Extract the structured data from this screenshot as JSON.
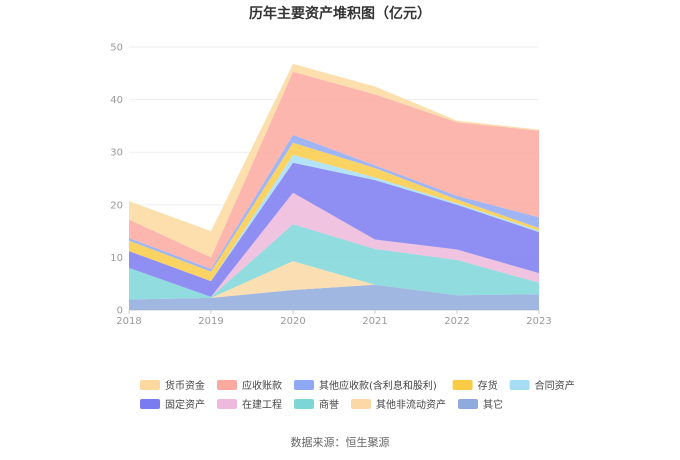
{
  "chart_data": {
    "type": "area",
    "stacked": true,
    "title": "历年主要资产堆积图（亿元）",
    "x": [
      "2018",
      "2019",
      "2020",
      "2021",
      "2022",
      "2023"
    ],
    "yticks": [
      "0",
      "10",
      "20",
      "30",
      "40",
      "50"
    ],
    "ylim": [
      0,
      50
    ],
    "grid": true,
    "legend_position": "bottom",
    "series": [
      {
        "name": "其它",
        "color": "#8FAADC",
        "values": [
          2.0,
          2.3,
          3.8,
          4.8,
          2.8,
          3.0
        ]
      },
      {
        "name": "其他非流动资产",
        "color": "#FBD8A6",
        "values": [
          0.0,
          0.0,
          5.5,
          0.0,
          0.0,
          0.0
        ]
      },
      {
        "name": "商誉",
        "color": "#7CD6D8",
        "values": [
          6.0,
          0.2,
          7.0,
          6.8,
          6.7,
          2.2
        ]
      },
      {
        "name": "在建工程",
        "color": "#EDB9DC",
        "values": [
          0.0,
          0.0,
          6.0,
          1.8,
          2.0,
          1.8
        ]
      },
      {
        "name": "固定资产",
        "color": "#7B7BF1",
        "values": [
          3.2,
          3.0,
          5.7,
          11.3,
          8.5,
          7.8
        ]
      },
      {
        "name": "合同资产",
        "color": "#A7DDF4",
        "values": [
          0.0,
          0.0,
          1.5,
          0.5,
          0.3,
          0.3
        ]
      },
      {
        "name": "存货",
        "color": "#FACB47",
        "values": [
          2.0,
          1.8,
          2.3,
          1.8,
          0.7,
          0.5
        ]
      },
      {
        "name": "其他应收款(含利息和股利)",
        "color": "#8EA8F5",
        "values": [
          0.5,
          0.5,
          1.5,
          0.5,
          0.7,
          2.0
        ]
      },
      {
        "name": "应收账款",
        "color": "#FCA9A0",
        "values": [
          3.5,
          2.2,
          12.0,
          13.5,
          14.0,
          16.5
        ]
      },
      {
        "name": "货币资金",
        "color": "#FDD9A0",
        "values": [
          3.5,
          5.0,
          1.5,
          1.5,
          0.3,
          0.2
        ]
      }
    ],
    "legend_order": [
      "货币资金",
      "应收账款",
      "其他应收款(含利息和股利)",
      "存货",
      "合同资产",
      "固定资产",
      "在建工程",
      "商誉",
      "其他非流动资产",
      "其它"
    ]
  },
  "source": "数据来源：恒生聚源"
}
